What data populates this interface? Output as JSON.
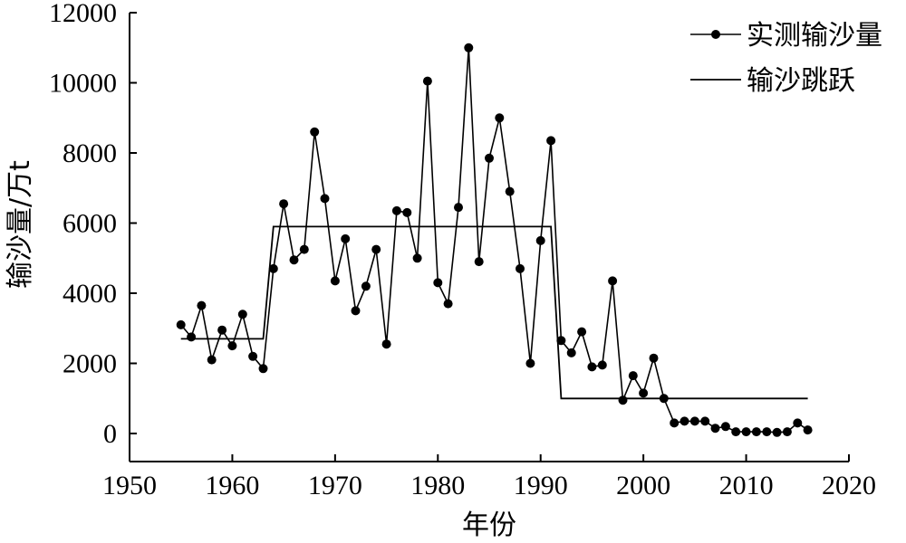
{
  "chart_data": {
    "type": "line",
    "xlabel": "年份",
    "ylabel": "输沙量/万t",
    "xlim": [
      1950,
      2020
    ],
    "ylim": [
      -800,
      12000
    ],
    "xticks": [
      1950,
      1960,
      1970,
      1980,
      1990,
      2000,
      2010,
      2020
    ],
    "yticks": [
      0,
      2000,
      4000,
      6000,
      8000,
      10000,
      12000
    ],
    "grid": false,
    "legend_position": "top-right",
    "series": [
      {
        "name": "实测输沙量",
        "style": "line-with-markers",
        "x": [
          1955,
          1956,
          1957,
          1958,
          1959,
          1960,
          1961,
          1962,
          1963,
          1964,
          1965,
          1966,
          1967,
          1968,
          1969,
          1970,
          1971,
          1972,
          1973,
          1974,
          1975,
          1976,
          1977,
          1978,
          1979,
          1980,
          1981,
          1982,
          1983,
          1984,
          1985,
          1986,
          1987,
          1988,
          1989,
          1990,
          1991,
          1992,
          1993,
          1994,
          1995,
          1996,
          1997,
          1998,
          1999,
          2000,
          2001,
          2002,
          2003,
          2004,
          2005,
          2006,
          2007,
          2008,
          2009,
          2010,
          2011,
          2012,
          2013,
          2014,
          2015,
          2016
        ],
        "y": [
          3100,
          2750,
          3650,
          2100,
          2950,
          2500,
          3400,
          2200,
          1850,
          4700,
          6550,
          4950,
          5250,
          8600,
          6700,
          4350,
          5550,
          3500,
          4200,
          5250,
          2550,
          6350,
          6300,
          5000,
          10050,
          4300,
          3700,
          6450,
          11000,
          4900,
          7850,
          9000,
          6900,
          4700,
          2000,
          5500,
          8350,
          2650,
          2300,
          2900,
          1900,
          1950,
          4350,
          950,
          1650,
          1150,
          2150,
          1000,
          300,
          350,
          350,
          350,
          150,
          200,
          50,
          50,
          50,
          50,
          30,
          50,
          300,
          100
        ]
      },
      {
        "name": "输沙跳跃",
        "style": "line",
        "x": [
          1955,
          1963,
          1964,
          1991,
          1992,
          2016
        ],
        "y": [
          2700,
          2700,
          5900,
          5900,
          1000,
          1000
        ]
      }
    ]
  }
}
